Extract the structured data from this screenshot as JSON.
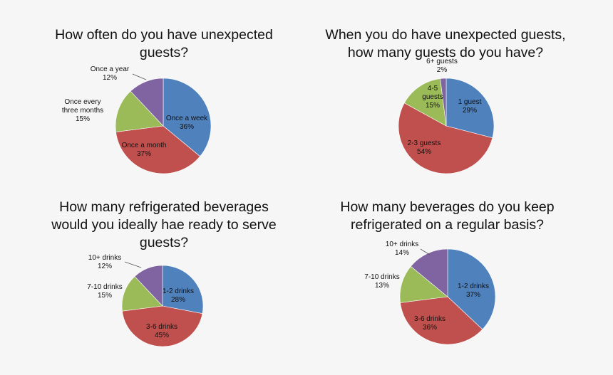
{
  "colors": {
    "blue": "#4f81bd",
    "red": "#c0504d",
    "green": "#9bbb59",
    "purple": "#8064a2",
    "background": "#f6f6f6"
  },
  "chart_data": [
    {
      "type": "pie",
      "title": "How often do you have unexpected\nguests?",
      "slices": [
        {
          "label": "Once a week",
          "value": 36,
          "value_label": "36%",
          "color": "#4f81bd"
        },
        {
          "label": "Once a month",
          "value": 37,
          "value_label": "37%",
          "color": "#c0504d"
        },
        {
          "label": "Once every three months",
          "value": 15,
          "value_label": "15%",
          "color": "#9bbb59"
        },
        {
          "label": "Once a year",
          "value": 12,
          "value_label": "12%",
          "color": "#8064a2"
        }
      ]
    },
    {
      "type": "pie",
      "title": "When you do have unexpected guests,\nhow many guests do you have?",
      "slices": [
        {
          "label": "1 guest",
          "value": 29,
          "value_label": "29%",
          "color": "#4f81bd"
        },
        {
          "label": "2-3 guests",
          "value": 54,
          "value_label": "54%",
          "color": "#c0504d"
        },
        {
          "label": "4-5 guests",
          "value": 15,
          "value_label": "15%",
          "color": "#9bbb59"
        },
        {
          "label": "6+ guests",
          "value": 2,
          "value_label": "2%",
          "color": "#8064a2"
        }
      ]
    },
    {
      "type": "pie",
      "title": "How many refrigerated beverages\nwould you ideally hae ready to serve\nguests?",
      "slices": [
        {
          "label": "1-2 drinks",
          "value": 28,
          "value_label": "28%",
          "color": "#4f81bd"
        },
        {
          "label": "3-6 drinks",
          "value": 45,
          "value_label": "45%",
          "color": "#c0504d"
        },
        {
          "label": "7-10 drinks",
          "value": 15,
          "value_label": "15%",
          "color": "#9bbb59"
        },
        {
          "label": "10+ drinks",
          "value": 12,
          "value_label": "12%",
          "color": "#8064a2"
        }
      ]
    },
    {
      "type": "pie",
      "title": "How many beverages do you keep\nrefrigerated on a regular basis?",
      "slices": [
        {
          "label": "1-2 drinks",
          "value": 37,
          "value_label": "37%",
          "color": "#4f81bd"
        },
        {
          "label": "3-6 drinks",
          "value": 36,
          "value_label": "36%",
          "color": "#c0504d"
        },
        {
          "label": "7-10 drinks",
          "value": 13,
          "value_label": "13%",
          "color": "#9bbb59"
        },
        {
          "label": "10+ drinks",
          "value": 14,
          "value_label": "14%",
          "color": "#8064a2"
        }
      ]
    }
  ]
}
